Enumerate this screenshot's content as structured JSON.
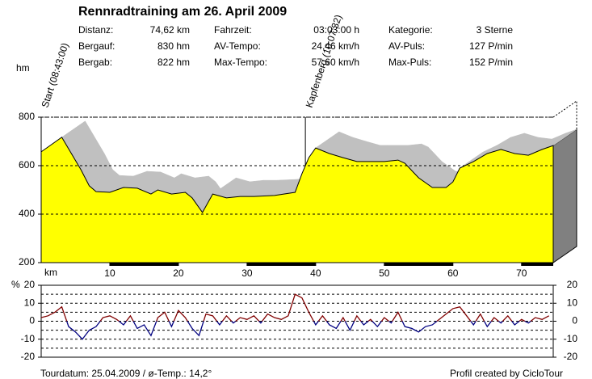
{
  "header": {
    "title": "Rennradtraining am 26. April 2009",
    "stats": [
      [
        "Distanz:",
        "74,62 km"
      ],
      [
        "Bergauf:",
        "830 hm"
      ],
      [
        "Bergab:",
        "822 hm"
      ],
      [
        "Fahrzeit:",
        "03:03:00 h"
      ],
      [
        "AV-Tempo:",
        "24,46 km/h"
      ],
      [
        "Max-Tempo:",
        "57,60 km/h"
      ],
      [
        "Kategorie:",
        "3 Sterne"
      ],
      [
        "AV-Puls:",
        "127 P/min"
      ],
      [
        "Max-Puls:",
        "152 P/min"
      ]
    ]
  },
  "footer": {
    "left": "Tourdatum: 25.04.2009  /  ø-Temp.: 14,2°",
    "right": "Profil created by CicloTour"
  },
  "chart_data": [
    {
      "type": "area",
      "y_label": "hm",
      "x_label": "km",
      "color": "#ffff00",
      "shadow_color": "#c0c0c0",
      "x": [
        0,
        1,
        3,
        5.8,
        7,
        8,
        10,
        12,
        14,
        16,
        17,
        19,
        21,
        22,
        23.5,
        25,
        27,
        29,
        31,
        34,
        37,
        38,
        39,
        40,
        42,
        44,
        46,
        47,
        50,
        52,
        53,
        55,
        57,
        59,
        60,
        61,
        63,
        65,
        67,
        69,
        71,
        73,
        74.62
      ],
      "values": [
        657,
        677,
        717,
        583,
        517,
        493,
        490,
        510,
        507,
        483,
        500,
        483,
        490,
        467,
        407,
        483,
        467,
        473,
        473,
        477,
        490,
        567,
        633,
        673,
        650,
        633,
        617,
        617,
        617,
        623,
        610,
        550,
        510,
        510,
        533,
        590,
        617,
        650,
        667,
        650,
        643,
        667,
        683
      ],
      "xlim": [
        0,
        74.62
      ],
      "ylim": [
        200,
        800
      ],
      "xticks": [
        10,
        20,
        30,
        40,
        50,
        60,
        70
      ],
      "yticks": [
        200,
        400,
        600,
        800
      ],
      "grid": true,
      "annotations": [
        {
          "text": "Start (08:43:00)",
          "x": 0
        },
        {
          "text": "Kapfenberg (10:07:32)",
          "x": 38.5
        }
      ]
    },
    {
      "type": "line",
      "y_label": "%",
      "positive_color": "#800000",
      "negative_color": "#000080",
      "x": [
        0,
        1,
        2,
        3,
        4,
        5,
        6,
        7,
        8,
        9,
        10,
        11,
        12,
        13,
        14,
        15,
        16,
        17,
        18,
        19,
        20,
        21,
        22,
        23,
        24,
        25,
        26,
        27,
        28,
        29,
        30,
        31,
        32,
        33,
        34,
        35,
        36,
        37,
        38,
        39,
        40,
        41,
        42,
        43,
        44,
        45,
        46,
        47,
        48,
        49,
        50,
        51,
        52,
        53,
        54,
        55,
        56,
        57,
        58,
        59,
        60,
        61,
        62,
        63,
        64,
        65,
        66,
        67,
        68,
        69,
        70,
        71,
        72,
        73,
        74
      ],
      "values": [
        2,
        3,
        5,
        8,
        -3,
        -6,
        -10,
        -5,
        -3,
        2,
        3,
        1,
        -2,
        3,
        -4,
        -2,
        -8,
        2,
        5,
        -3,
        6,
        2,
        -4,
        -8,
        4,
        3,
        -2,
        3,
        -1,
        2,
        1,
        3,
        -1,
        4,
        2,
        1,
        3,
        15,
        13,
        5,
        -2,
        3,
        -2,
        -4,
        2,
        -5,
        3,
        -2,
        1,
        -3,
        2,
        -1,
        5,
        -3,
        -4,
        -6,
        -3,
        -2,
        1,
        4,
        7,
        8,
        3,
        -2,
        4,
        -3,
        2,
        -1,
        3,
        -2,
        1,
        -1,
        2,
        1,
        3
      ],
      "xlim": [
        0,
        74.62
      ],
      "ylim": [
        -20,
        20
      ],
      "yticks": [
        -20,
        -10,
        0,
        10,
        20
      ],
      "y2ticks": [
        -20,
        -10,
        0,
        10,
        20
      ],
      "gridlines": [
        -15,
        -10,
        -5,
        0,
        5,
        10,
        15
      ]
    }
  ]
}
